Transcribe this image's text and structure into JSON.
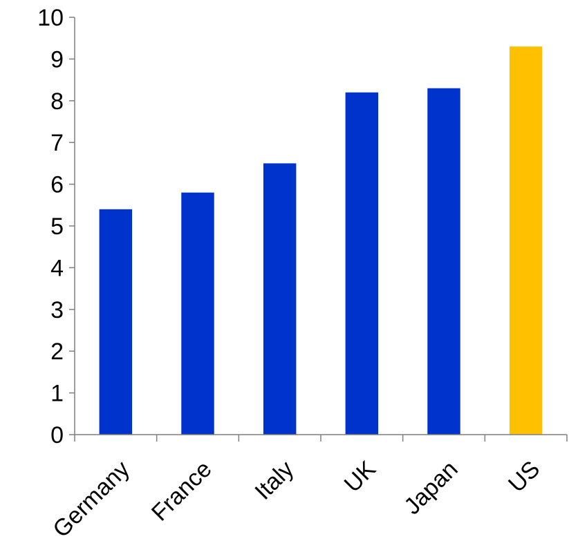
{
  "chart_data": {
    "type": "bar",
    "title": "",
    "xlabel": "",
    "ylabel": "",
    "categories": [
      "Germany",
      "France",
      "Italy",
      "UK",
      "Japan",
      "US"
    ],
    "values": [
      5.4,
      5.8,
      6.5,
      8.2,
      8.3,
      9.3
    ],
    "bar_colors": [
      "#0033cc",
      "#0033cc",
      "#0033cc",
      "#0033cc",
      "#0033cc",
      "#ffc000"
    ],
    "ylim": [
      0,
      10
    ],
    "yticks": [
      "0",
      "1",
      "2",
      "3",
      "4",
      "5",
      "6",
      "7",
      "8",
      "9",
      "10"
    ],
    "grid": false,
    "legend": "none"
  }
}
